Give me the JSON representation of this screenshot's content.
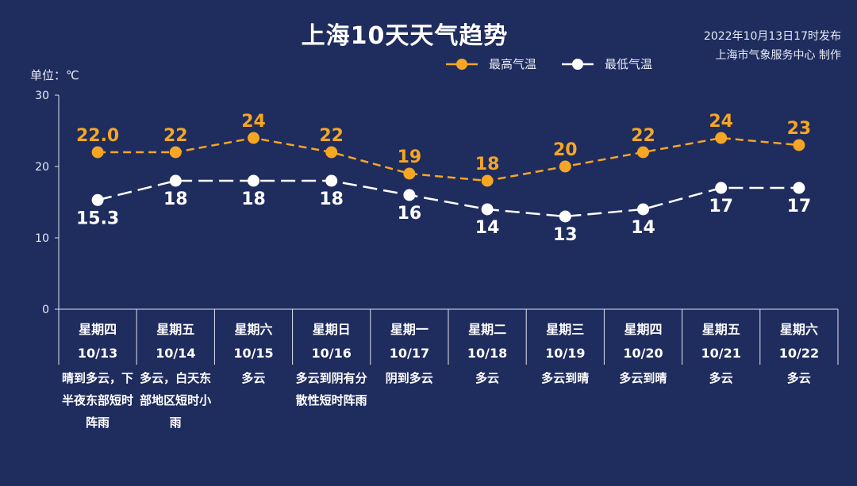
{
  "title": "上海10天天气趋势",
  "publish": {
    "time": "2022年10月13日17时发布",
    "source": "上海市气象服务中心 制作"
  },
  "unit_label": "单位：℃",
  "colors": {
    "high": "#f5a623",
    "low": "#ffffff",
    "background": "#1f2c5e",
    "axis": "#dfe4ef"
  },
  "chart_data": {
    "type": "line",
    "categories": [
      "10/13",
      "10/14",
      "10/15",
      "10/16",
      "10/17",
      "10/18",
      "10/19",
      "10/20",
      "10/21",
      "10/22"
    ],
    "weekdays": [
      "星期四",
      "星期五",
      "星期六",
      "星期日",
      "星期一",
      "星期二",
      "星期三",
      "星期四",
      "星期五",
      "星期六"
    ],
    "weather": [
      "晴到多云，下半夜东部短时阵雨",
      "多云，白天东部地区短时小雨",
      "多云",
      "多云到阴有分散性短时阵雨",
      "阴到多云",
      "多云",
      "多云到晴",
      "多云到晴",
      "多云",
      "多云"
    ],
    "series": [
      {
        "name": "最高气温",
        "values": [
          22.0,
          22,
          24,
          22,
          19,
          18,
          20,
          22,
          24,
          23
        ],
        "labels": [
          "22.0",
          "22",
          "24",
          "22",
          "19",
          "18",
          "20",
          "22",
          "24",
          "23"
        ]
      },
      {
        "name": "最低气温",
        "values": [
          15.3,
          18,
          18,
          18,
          16,
          14,
          13,
          14,
          17,
          17
        ],
        "labels": [
          "15.3",
          "18",
          "18",
          "18",
          "16",
          "14",
          "13",
          "14",
          "17",
          "17"
        ]
      }
    ],
    "ylim": [
      0,
      30
    ],
    "yticks": [
      0,
      10,
      20,
      30
    ],
    "legend": "top-right"
  }
}
